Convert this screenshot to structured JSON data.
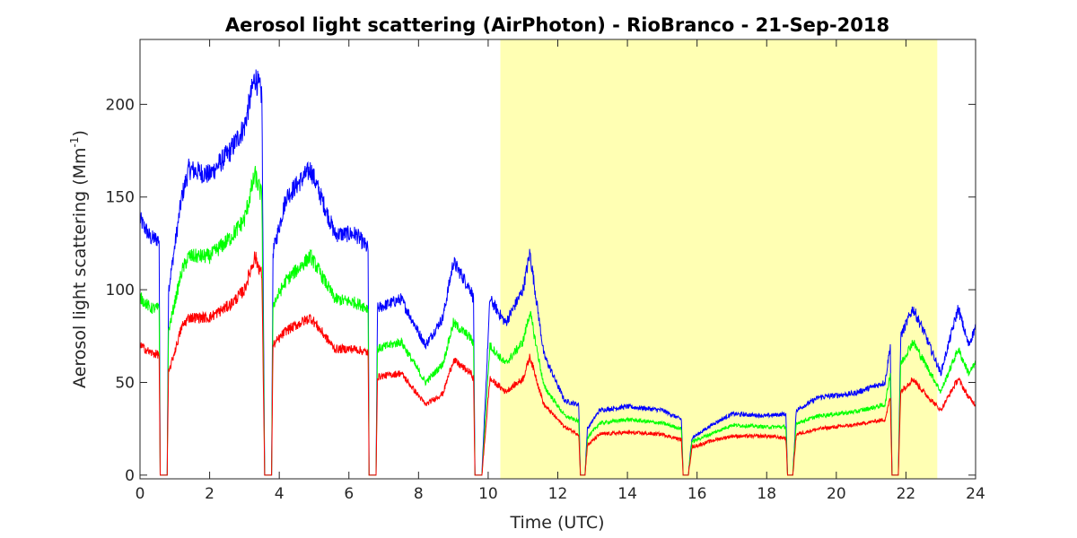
{
  "chart_data": {
    "type": "line",
    "title": "Aerosol light scattering (AirPhoton) - RioBranco - 21-Sep-2018",
    "xlabel": "Time (UTC)",
    "ylabel": "Aerosol light scattering (Mm",
    "ylabel_exponent": "-1",
    "ylabel_close": ")",
    "xlim": [
      0,
      24
    ],
    "ylim": [
      -2,
      235
    ],
    "xticks": [
      0,
      2,
      4,
      6,
      8,
      10,
      12,
      14,
      16,
      18,
      20,
      22,
      24
    ],
    "yticks": [
      0,
      50,
      100,
      150,
      200
    ],
    "grid": false,
    "daytime_shading": {
      "x": [
        10.35,
        22.9
      ],
      "color": "#ffffb3"
    },
    "x": [
      0,
      0.3,
      0.55,
      0.58,
      0.62,
      0.78,
      0.82,
      1.2,
      1.4,
      2.0,
      2.6,
      3.0,
      3.3,
      3.5,
      3.58,
      3.62,
      3.78,
      3.82,
      4.2,
      4.9,
      5.6,
      6.2,
      6.55,
      6.58,
      6.62,
      6.78,
      6.82,
      7.5,
      8.2,
      8.7,
      9.0,
      9.5,
      9.58,
      9.62,
      9.78,
      9.82,
      10.05,
      10.5,
      11.0,
      11.2,
      11.6,
      12.2,
      12.6,
      12.65,
      12.72,
      12.78,
      12.85,
      13.2,
      14.0,
      15.0,
      15.55,
      15.6,
      15.68,
      15.75,
      15.85,
      16.5,
      17.0,
      18.0,
      18.55,
      18.6,
      18.7,
      18.75,
      18.85,
      19.5,
      20.5,
      21.4,
      21.55,
      21.6,
      21.72,
      21.78,
      21.85,
      22.2,
      22.5,
      23.0,
      23.5,
      23.8,
      24.0
    ],
    "series": [
      {
        "color": "#0000ff",
        "values": [
          138,
          128,
          127,
          0,
          0,
          0,
          100,
          150,
          165,
          162,
          175,
          188,
          215,
          205,
          0,
          0,
          0,
          120,
          150,
          165,
          130,
          130,
          122,
          0,
          0,
          0,
          90,
          95,
          70,
          85,
          115,
          100,
          95,
          0,
          0,
          0,
          95,
          82,
          100,
          120,
          65,
          40,
          38,
          0,
          0,
          0,
          25,
          35,
          37,
          35,
          30,
          0,
          0,
          0,
          20,
          28,
          33,
          32,
          33,
          0,
          0,
          0,
          35,
          42,
          44,
          50,
          70,
          0,
          0,
          0,
          75,
          90,
          78,
          55,
          90,
          70,
          80
        ]
      },
      {
        "color": "#00ff00",
        "values": [
          96,
          90,
          90,
          0,
          0,
          0,
          78,
          110,
          118,
          118,
          128,
          138,
          162,
          150,
          0,
          0,
          0,
          92,
          105,
          118,
          95,
          93,
          90,
          0,
          0,
          0,
          68,
          72,
          50,
          60,
          82,
          74,
          70,
          0,
          0,
          0,
          70,
          60,
          72,
          88,
          48,
          32,
          29,
          0,
          0,
          0,
          20,
          28,
          30,
          28,
          25,
          0,
          0,
          0,
          18,
          23,
          27,
          26,
          26,
          0,
          0,
          0,
          28,
          32,
          34,
          38,
          55,
          0,
          0,
          0,
          60,
          72,
          62,
          45,
          68,
          55,
          60
        ]
      },
      {
        "color": "#ff0000",
        "values": [
          70,
          66,
          65,
          0,
          0,
          0,
          55,
          80,
          85,
          85,
          92,
          100,
          118,
          108,
          0,
          0,
          0,
          70,
          78,
          85,
          68,
          68,
          66,
          0,
          0,
          0,
          53,
          55,
          38,
          44,
          62,
          55,
          52,
          0,
          0,
          0,
          52,
          45,
          52,
          64,
          38,
          26,
          22,
          0,
          0,
          0,
          16,
          22,
          23,
          22,
          19,
          0,
          0,
          0,
          15,
          19,
          21,
          21,
          20,
          0,
          0,
          0,
          22,
          25,
          27,
          30,
          42,
          0,
          0,
          0,
          45,
          52,
          45,
          35,
          52,
          42,
          38
        ]
      }
    ]
  }
}
